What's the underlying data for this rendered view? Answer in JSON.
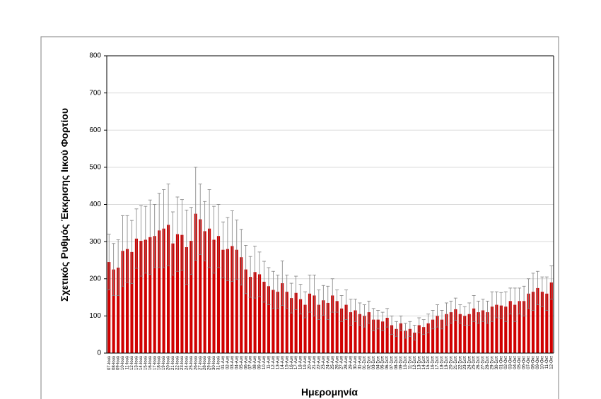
{
  "chart_data": {
    "type": "bar",
    "y_label": "Σχετικός Ρυθμός Έκκρισης Ιικού Φορτίου",
    "x_label": "Ημερομηνία",
    "color": "#d00000",
    "error_color": "#808080",
    "grid": true,
    "ylim": [
      0,
      800
    ],
    "yticks": [
      0,
      100,
      200,
      300,
      400,
      500,
      600,
      700,
      800
    ],
    "categories": [
      "07-Ιουλ",
      "08-Ιουλ",
      "09-Ιουλ",
      "10-Ιουλ",
      "11-Ιουλ",
      "12-Ιουλ",
      "13-Ιουλ",
      "14-Ιουλ",
      "15-Ιουλ",
      "16-Ιουλ",
      "17-Ιουλ",
      "18-Ιουλ",
      "19-Ιουλ",
      "20-Ιουλ",
      "21-Ιουλ",
      "22-Ιουλ",
      "23-Ιουλ",
      "24-Ιουλ",
      "25-Ιουλ",
      "26-Ιουλ",
      "27-Ιουλ",
      "28-Ιουλ",
      "29-Ιουλ",
      "30-Ιουλ",
      "31-Ιουλ",
      "01-Αυγ",
      "02-Αυγ",
      "03-Αυγ",
      "04-Αυγ",
      "05-Αυγ",
      "06-Αυγ",
      "07-Αυγ",
      "08-Αυγ",
      "09-Αυγ",
      "10-Αυγ",
      "11-Αυγ",
      "12-Αυγ",
      "13-Αυγ",
      "14-Αυγ",
      "15-Αυγ",
      "16-Αυγ",
      "17-Αυγ",
      "18-Αυγ",
      "19-Αυγ",
      "20-Αυγ",
      "21-Αυγ",
      "22-Αυγ",
      "23-Αυγ",
      "24-Αυγ",
      "25-Αυγ",
      "26-Αυγ",
      "27-Αυγ",
      "28-Αυγ",
      "29-Αυγ",
      "30-Αυγ",
      "31-Αυγ",
      "01-Σεπ",
      "02-Σεπ",
      "03-Σεπ",
      "04-Σεπ",
      "05-Σεπ",
      "06-Σεπ",
      "07-Σεπ",
      "08-Σεπ",
      "09-Σεπ",
      "10-Σεπ",
      "11-Σεπ",
      "12-Σεπ",
      "13-Σεπ",
      "14-Σεπ",
      "15-Σεπ",
      "16-Σεπ",
      "17-Σεπ",
      "18-Σεπ",
      "19-Σεπ",
      "20-Σεπ",
      "21-Σεπ",
      "22-Σεπ",
      "23-Σεπ",
      "24-Σεπ",
      "25-Σεπ",
      "26-Σεπ",
      "27-Σεπ",
      "28-Σεπ",
      "29-Σεπ",
      "30-Σεπ",
      "01-Οκτ",
      "02-Οκτ",
      "03-Οκτ",
      "04-Οκτ",
      "05-Οκτ",
      "06-Οκτ",
      "07-Οκτ",
      "08-Οκτ",
      "09-Οκτ",
      "10-Οκτ",
      "11-Οκτ",
      "12-Οκτ"
    ],
    "values": [
      245,
      225,
      230,
      275,
      280,
      272,
      308,
      302,
      305,
      312,
      315,
      330,
      335,
      345,
      295,
      320,
      318,
      285,
      302,
      375,
      360,
      328,
      335,
      305,
      315,
      278,
      280,
      288,
      278,
      258,
      225,
      205,
      218,
      212,
      192,
      180,
      170,
      165,
      188,
      165,
      148,
      162,
      145,
      130,
      160,
      155,
      130,
      142,
      135,
      155,
      140,
      120,
      130,
      110,
      115,
      105,
      100,
      110,
      90,
      90,
      85,
      95,
      75,
      65,
      80,
      60,
      65,
      55,
      75,
      70,
      80,
      90,
      100,
      90,
      105,
      110,
      118,
      105,
      100,
      105,
      120,
      110,
      115,
      110,
      125,
      130,
      128,
      125,
      140,
      130,
      140,
      140,
      160,
      165,
      175,
      165,
      160,
      190
    ],
    "errors": [
      75,
      70,
      75,
      95,
      90,
      85,
      80,
      95,
      90,
      100,
      85,
      100,
      105,
      110,
      85,
      100,
      95,
      100,
      90,
      125,
      95,
      80,
      105,
      90,
      85,
      75,
      85,
      95,
      80,
      75,
      65,
      55,
      70,
      60,
      55,
      50,
      50,
      45,
      60,
      45,
      40,
      45,
      40,
      35,
      50,
      55,
      40,
      40,
      45,
      45,
      30,
      35,
      40,
      35,
      30,
      30,
      30,
      30,
      30,
      25,
      25,
      25,
      25,
      20,
      20,
      20,
      20,
      20,
      20,
      20,
      25,
      25,
      30,
      25,
      30,
      30,
      30,
      25,
      25,
      30,
      35,
      30,
      30,
      30,
      40,
      35,
      35,
      40,
      35,
      45,
      35,
      40,
      40,
      50,
      45,
      40,
      45,
      45
    ]
  }
}
